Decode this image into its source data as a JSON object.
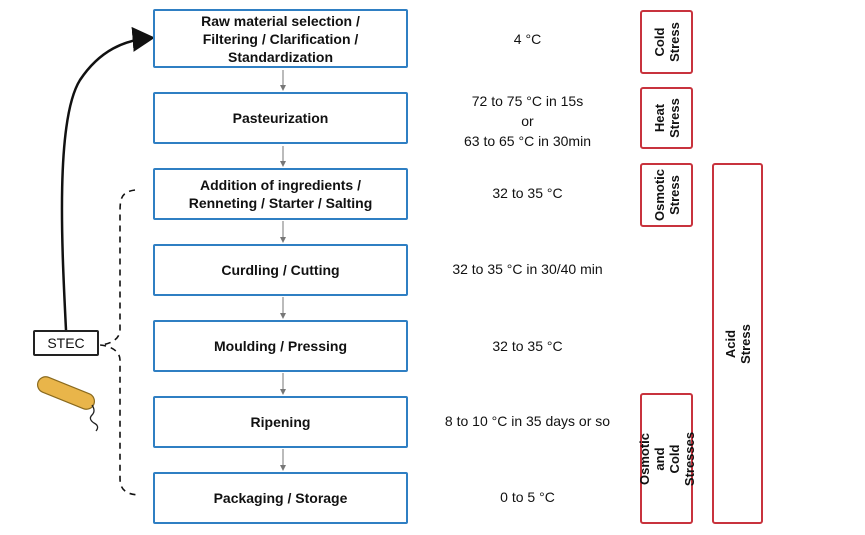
{
  "steps": [
    "Raw material selection /\nFiltering / Clarification /\nStandardization",
    "Pasteurization",
    "Addition of ingredients /\nRenneting / Starter / Salting",
    "Curdling / Cutting",
    "Moulding / Pressing",
    "Ripening",
    "Packaging / Storage"
  ],
  "temperatures": [
    "4 °C",
    "72 to 75 °C in 15s\nor\n63 to 65 °C in 30min",
    "32 to 35 °C",
    "32 to 35 °C in 30/40 min",
    "32 to 35 °C",
    "8 to 10 °C in 35 days or so",
    "0 to 5 °C"
  ],
  "stresses": {
    "cold": "Cold\nStress",
    "heat": "Heat\nStress",
    "osmotic": "Osmotic\nStress",
    "osmotic_cold": "Osmotic and\nCold Stresses",
    "acid": "Acid Stress"
  },
  "pathogen_label": "STEC",
  "colors": {
    "step_border": "#2f7fc3",
    "stress_border": "#c8333d",
    "bacterium": "#e9b54a"
  }
}
